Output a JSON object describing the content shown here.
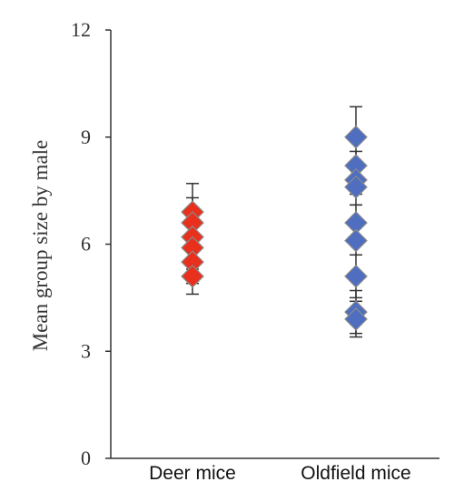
{
  "chart_data": {
    "type": "scatter",
    "ylabel": "Mean group size by male",
    "ylim": [
      0,
      12
    ],
    "yticks": [
      "0",
      "3",
      "6",
      "9",
      "12"
    ],
    "categories": [
      "Deer mice",
      "Oldfield mice"
    ],
    "series": [
      {
        "category": "Deer mice",
        "color": "#e8301c",
        "marker": "diamond",
        "points": [
          {
            "y": 6.9,
            "err": 0.8
          },
          {
            "y": 6.6,
            "err": 0.7
          },
          {
            "y": 6.2,
            "err": 0.7
          },
          {
            "y": 5.9,
            "err": 0.6
          },
          {
            "y": 5.5,
            "err": 0.6
          },
          {
            "y": 5.1,
            "err": 0.5
          }
        ]
      },
      {
        "category": "Oldfield mice",
        "color": "#4f6ec0",
        "marker": "diamond",
        "points": [
          {
            "y": 9.0,
            "err": 0.85
          },
          {
            "y": 8.2,
            "err": 0.4
          },
          {
            "y": 7.8,
            "err": 0.4
          },
          {
            "y": 7.6,
            "err": 0.5
          },
          {
            "y": 6.6,
            "err": 0.5
          },
          {
            "y": 6.1,
            "err": 0.4
          },
          {
            "y": 5.1,
            "err": 0.6
          },
          {
            "y": 4.1,
            "err": 0.6
          },
          {
            "y": 3.9,
            "err": 0.5
          }
        ]
      }
    ]
  }
}
